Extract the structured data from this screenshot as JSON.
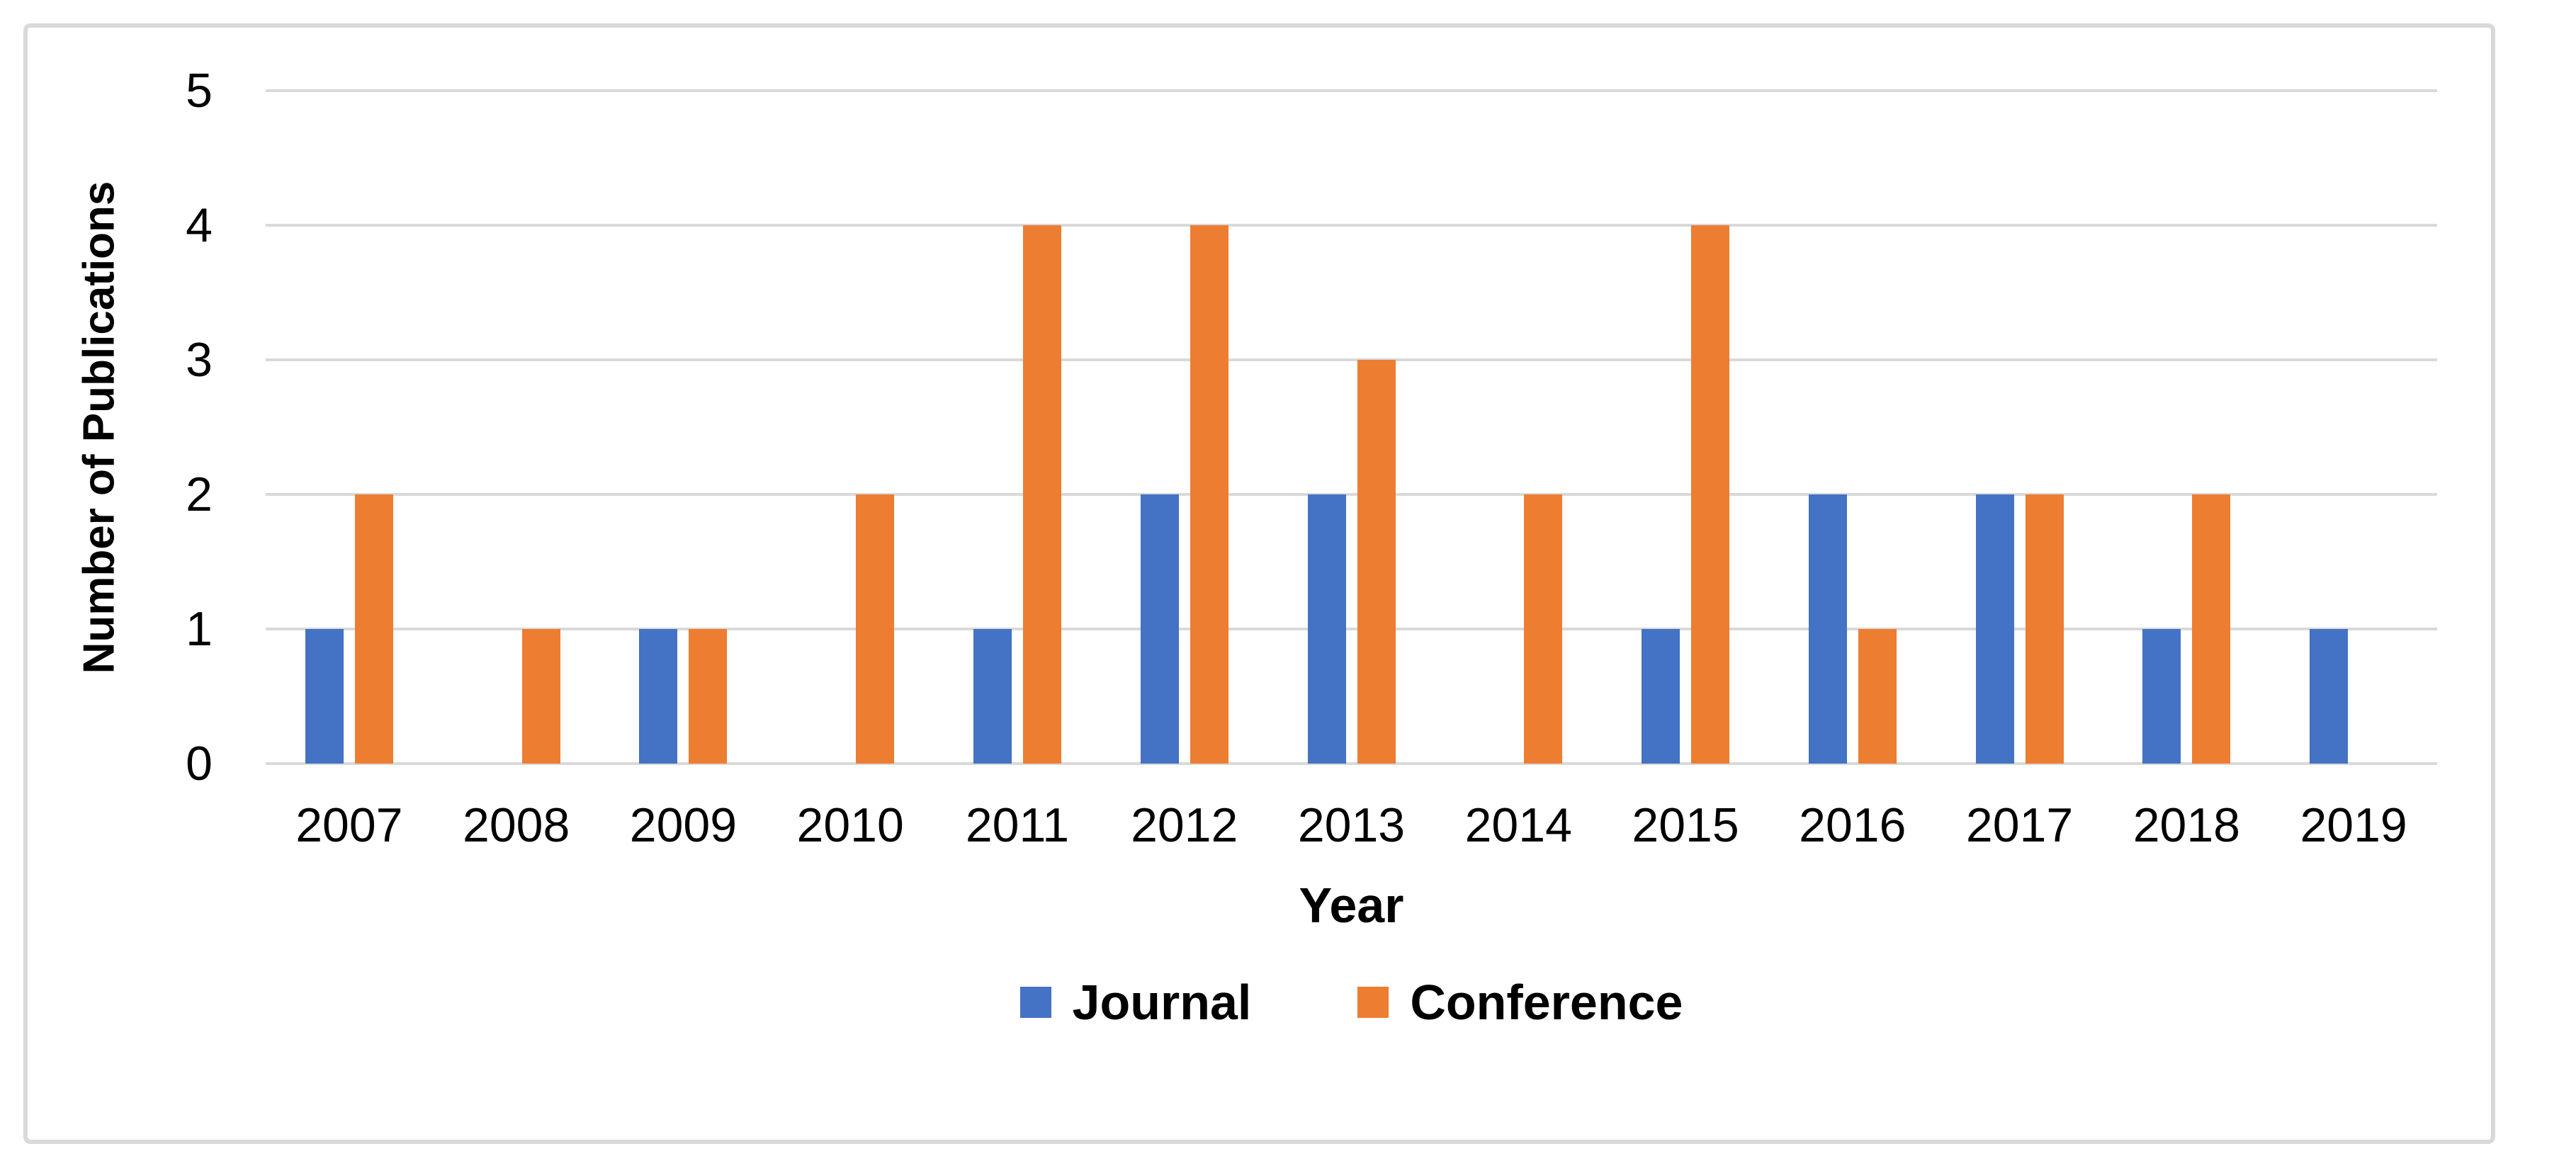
{
  "chart_data": {
    "type": "bar",
    "title": "",
    "xlabel": "Year",
    "ylabel": "Number of Publications",
    "categories": [
      "2007",
      "2008",
      "2009",
      "2010",
      "2011",
      "2012",
      "2013",
      "2014",
      "2015",
      "2016",
      "2017",
      "2018",
      "2019"
    ],
    "series": [
      {
        "name": "Journal",
        "color": "#4472C4",
        "values": [
          1,
          0,
          1,
          0,
          1,
          2,
          2,
          0,
          1,
          2,
          2,
          1,
          1
        ]
      },
      {
        "name": "Conference",
        "color": "#ED7D31",
        "values": [
          2,
          1,
          1,
          2,
          4,
          4,
          3,
          2,
          4,
          1,
          2,
          2,
          0
        ]
      }
    ],
    "ylim": [
      0,
      5
    ],
    "yticks": [
      0,
      1,
      2,
      3,
      4,
      5
    ],
    "grid": "horizontal",
    "gridline_color": "#D9D9D9",
    "frame_border_color": "#D9D9D9",
    "background": "#FFFFFF",
    "legend_position": "bottom"
  }
}
